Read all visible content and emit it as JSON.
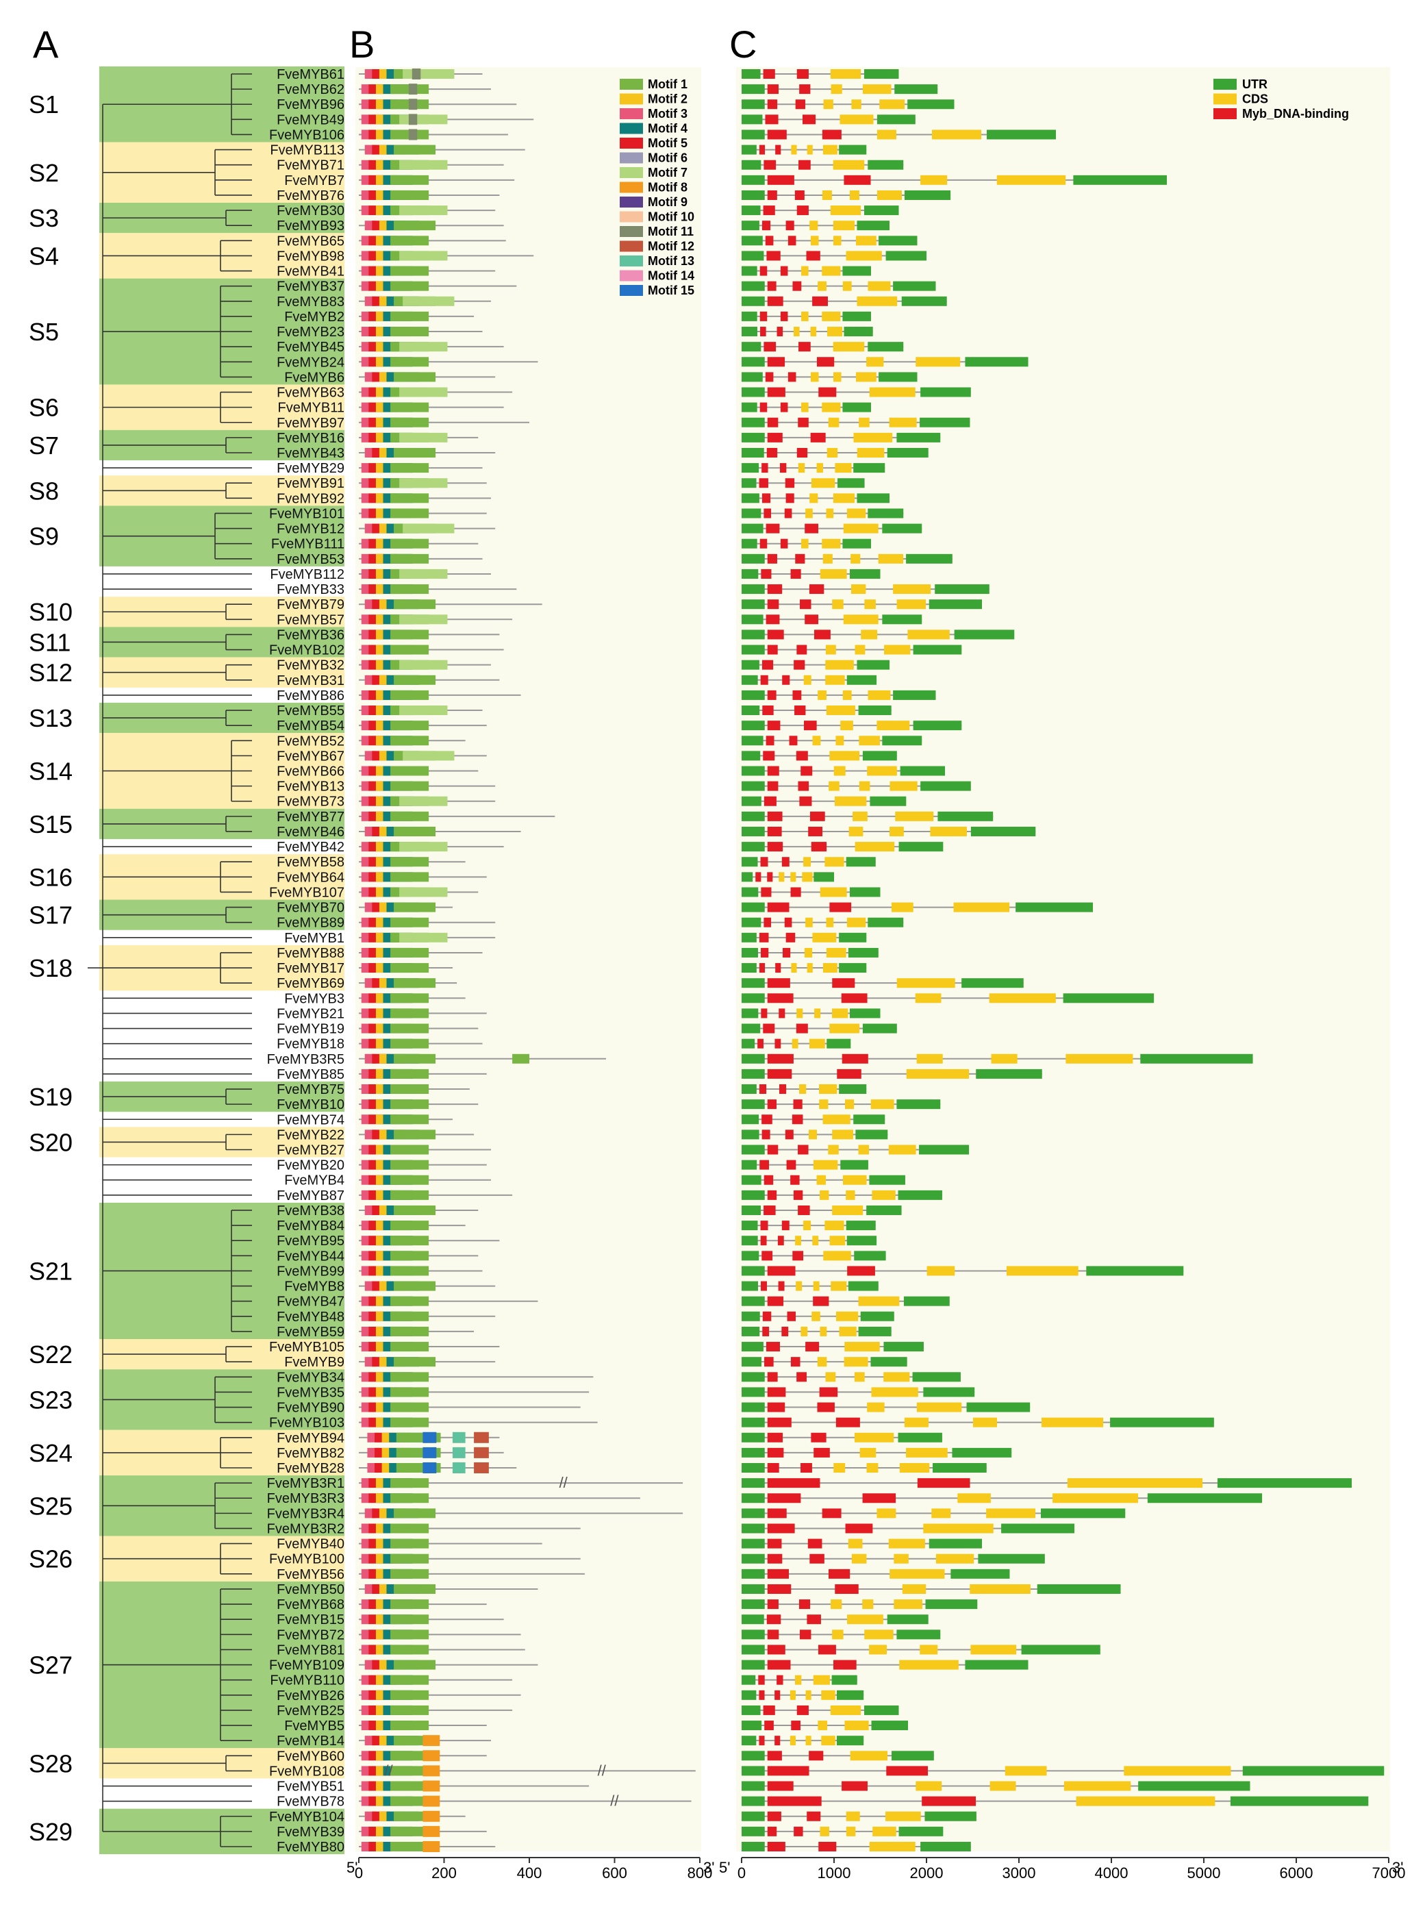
{
  "panels": {
    "a": "A",
    "b": "B",
    "c": "C"
  },
  "genes": [
    "FveMYB61",
    "FveMYB62",
    "FveMYB96",
    "FveMYB49",
    "FveMYB106",
    "FveMYB113",
    "FveMYB71",
    "FveMYB7",
    "FveMYB76",
    "FveMYB30",
    "FveMYB93",
    "FveMYB65",
    "FveMYB98",
    "FveMYB41",
    "FveMYB37",
    "FveMYB83",
    "FveMYB2",
    "FveMYB23",
    "FveMYB45",
    "FveMYB24",
    "FveMYB6",
    "FveMYB63",
    "FveMYB11",
    "FveMYB97",
    "FveMYB16",
    "FveMYB43",
    "FveMYB29",
    "FveMYB91",
    "FveMYB92",
    "FveMYB101",
    "FveMYB12",
    "FveMYB111",
    "FveMYB53",
    "FveMYB112",
    "FveMYB33",
    "FveMYB79",
    "FveMYB57",
    "FveMYB36",
    "FveMYB102",
    "FveMYB32",
    "FveMYB31",
    "FveMYB86",
    "FveMYB55",
    "FveMYB54",
    "FveMYB52",
    "FveMYB67",
    "FveMYB66",
    "FveMYB13",
    "FveMYB73",
    "FveMYB77",
    "FveMYB46",
    "FveMYB42",
    "FveMYB58",
    "FveMYB64",
    "FveMYB107",
    "FveMYB70",
    "FveMYB89",
    "FveMYB1",
    "FveMYB88",
    "FveMYB17",
    "FveMYB69",
    "FveMYB3",
    "FveMYB21",
    "FveMYB19",
    "FveMYB18",
    "FveMYB3R5",
    "FveMYB85",
    "FveMYB75",
    "FveMYB10",
    "FveMYB74",
    "FveMYB22",
    "FveMYB27",
    "FveMYB20",
    "FveMYB4",
    "FveMYB87",
    "FveMYB38",
    "FveMYB84",
    "FveMYB95",
    "FveMYB44",
    "FveMYB99",
    "FveMYB8",
    "FveMYB47",
    "FveMYB48",
    "FveMYB59",
    "FveMYB105",
    "FveMYB9",
    "FveMYB34",
    "FveMYB35",
    "FveMYB90",
    "FveMYB103",
    "FveMYB94",
    "FveMYB82",
    "FveMYB28",
    "FveMYB3R1",
    "FveMYB3R3",
    "FveMYB3R4",
    "FveMYB3R2",
    "FveMYB40",
    "FveMYB100",
    "FveMYB56",
    "FveMYB50",
    "FveMYB68",
    "FveMYB15",
    "FveMYB72",
    "FveMYB81",
    "FveMYB109",
    "FveMYB110",
    "FveMYB26",
    "FveMYB25",
    "FveMYB5",
    "FveMYB14",
    "FveMYB60",
    "FveMYB108",
    "FveMYB51",
    "FveMYB78",
    "FveMYB104",
    "FveMYB39",
    "FveMYB80"
  ],
  "subgroups": [
    {
      "label": "S1",
      "start": 0,
      "end": 4,
      "color": "green"
    },
    {
      "label": "S2",
      "start": 5,
      "end": 8,
      "color": "yellow"
    },
    {
      "label": "S3",
      "start": 9,
      "end": 10,
      "color": "green"
    },
    {
      "label": "S4",
      "start": 11,
      "end": 13,
      "color": "yellow"
    },
    {
      "label": "S5",
      "start": 14,
      "end": 20,
      "color": "green"
    },
    {
      "label": "S6",
      "start": 21,
      "end": 23,
      "color": "yellow"
    },
    {
      "label": "S7",
      "start": 24,
      "end": 25,
      "color": "green"
    },
    {
      "label": "S8",
      "start": 27,
      "end": 28,
      "color": "yellow"
    },
    {
      "label": "S9",
      "start": 29,
      "end": 32,
      "color": "green"
    },
    {
      "label": "S10",
      "start": 35,
      "end": 36,
      "color": "yellow"
    },
    {
      "label": "S11",
      "start": 37,
      "end": 38,
      "color": "green"
    },
    {
      "label": "S12",
      "start": 39,
      "end": 40,
      "color": "yellow"
    },
    {
      "label": "S13",
      "start": 42,
      "end": 43,
      "color": "green"
    },
    {
      "label": "S14",
      "start": 44,
      "end": 48,
      "color": "yellow"
    },
    {
      "label": "S15",
      "start": 49,
      "end": 50,
      "color": "green"
    },
    {
      "label": "S16",
      "start": 52,
      "end": 54,
      "color": "yellow"
    },
    {
      "label": "S17",
      "start": 55,
      "end": 56,
      "color": "green"
    },
    {
      "label": "S18",
      "start": 58,
      "end": 60,
      "color": "yellow"
    },
    {
      "label": "S19",
      "start": 67,
      "end": 68,
      "color": "green"
    },
    {
      "label": "S20",
      "start": 70,
      "end": 71,
      "color": "yellow"
    },
    {
      "label": "S21",
      "start": 75,
      "end": 83,
      "color": "green"
    },
    {
      "label": "S22",
      "start": 84,
      "end": 85,
      "color": "yellow"
    },
    {
      "label": "S23",
      "start": 86,
      "end": 89,
      "color": "green"
    },
    {
      "label": "S24",
      "start": 90,
      "end": 92,
      "color": "yellow"
    },
    {
      "label": "S25",
      "start": 93,
      "end": 96,
      "color": "green"
    },
    {
      "label": "S26",
      "start": 97,
      "end": 99,
      "color": "yellow"
    },
    {
      "label": "S27",
      "start": 100,
      "end": 110,
      "color": "green"
    },
    {
      "label": "S28",
      "start": 111,
      "end": 112,
      "color": "yellow"
    },
    {
      "label": "S29",
      "start": 115,
      "end": 117,
      "color": "green"
    }
  ],
  "motif_legend": [
    {
      "label": "Motif 1",
      "color": "#78b543"
    },
    {
      "label": "Motif 2",
      "color": "#f6c21c"
    },
    {
      "label": "Motif 3",
      "color": "#e8577a"
    },
    {
      "label": "Motif 4",
      "color": "#0e7f7a"
    },
    {
      "label": "Motif 5",
      "color": "#e31b23"
    },
    {
      "label": "Motif 6",
      "color": "#9a9ab8"
    },
    {
      "label": "Motif 7",
      "color": "#b0d77c"
    },
    {
      "label": "Motif 8",
      "color": "#f39a1e"
    },
    {
      "label": "Motif 9",
      "color": "#5c3e8e"
    },
    {
      "label": "Motif 10",
      "color": "#f8c29d"
    },
    {
      "label": "Motif 11",
      "color": "#7f8a6c"
    },
    {
      "label": "Motif 12",
      "color": "#c4553a"
    },
    {
      "label": "Motif 13",
      "color": "#5ec29f"
    },
    {
      "label": "Motif 14",
      "color": "#ef8fb7"
    },
    {
      "label": "Motif 15",
      "color": "#2472c8"
    }
  ],
  "structure_legend": [
    {
      "label": "UTR",
      "color": "#3aa535"
    },
    {
      "label": "CDS",
      "color": "#f7c91b"
    },
    {
      "label": "Myb_DNA-binding",
      "color": "#e31b23"
    }
  ],
  "axis_b": {
    "ticks": [
      "0",
      "200",
      "400",
      "600",
      "800"
    ],
    "left": "5'",
    "right": "3'",
    "max": 800
  },
  "axis_c": {
    "ticks": [
      "0",
      "1000",
      "2000",
      "3000",
      "4000",
      "5000",
      "6000",
      "7000"
    ],
    "left": "5'",
    "right": "3'",
    "max": 7000
  },
  "protein_lengths": [
    290,
    310,
    370,
    410,
    350,
    390,
    340,
    365,
    330,
    320,
    340,
    345,
    410,
    320,
    370,
    310,
    270,
    290,
    340,
    420,
    320,
    360,
    340,
    400,
    280,
    320,
    290,
    300,
    310,
    300,
    320,
    280,
    290,
    310,
    370,
    430,
    360,
    330,
    340,
    310,
    330,
    380,
    290,
    300,
    250,
    300,
    280,
    320,
    320,
    460,
    380,
    340,
    250,
    300,
    280,
    220,
    320,
    320,
    290,
    220,
    230,
    250,
    300,
    280,
    290,
    580,
    300,
    260,
    280,
    220,
    270,
    310,
    300,
    310,
    360,
    280,
    250,
    330,
    280,
    290,
    320,
    420,
    320,
    270,
    330,
    320,
    550,
    540,
    520,
    560,
    330,
    340,
    370,
    760,
    660,
    760,
    520,
    430,
    520,
    530,
    420,
    300,
    340,
    380,
    390,
    420,
    360,
    380,
    360,
    300,
    310,
    300,
    790,
    540,
    780,
    250,
    300,
    320
  ],
  "gene_lengths": [
    1700,
    2120,
    2300,
    1880,
    3400,
    1350,
    1750,
    4600,
    2260,
    1700,
    1600,
    1900,
    2000,
    1400,
    2100,
    2220,
    1400,
    1420,
    1750,
    3100,
    1900,
    2480,
    1400,
    2470,
    2150,
    2020,
    1550,
    1330,
    1600,
    1750,
    1950,
    1400,
    2280,
    1500,
    2680,
    2600,
    1950,
    2950,
    2380,
    1600,
    1460,
    2100,
    1620,
    2380,
    1950,
    1680,
    2200,
    2480,
    1780,
    2720,
    3180,
    2180,
    1450,
    1000,
    1500,
    3800,
    1750,
    1350,
    1480,
    1350,
    3050,
    4460,
    1500,
    1680,
    1180,
    5530,
    3250,
    1350,
    2150,
    1550,
    1580,
    2460,
    1370,
    1770,
    2170,
    1730,
    1450,
    1460,
    1560,
    4780,
    1480,
    2250,
    1650,
    1620,
    1970,
    1790,
    2370,
    2520,
    3120,
    5110,
    2170,
    2920,
    2650,
    6600,
    5630,
    4150,
    3600,
    2600,
    3280,
    2900,
    4100,
    2550,
    2020,
    2150,
    3880,
    3100,
    1250,
    1320,
    1700,
    1800,
    1320,
    2080,
    6950,
    5500,
    6780,
    2540,
    2180,
    2480
  ],
  "cut_marks": [
    "//",
    "//",
    "//",
    "//",
    "//",
    "//",
    "//"
  ]
}
